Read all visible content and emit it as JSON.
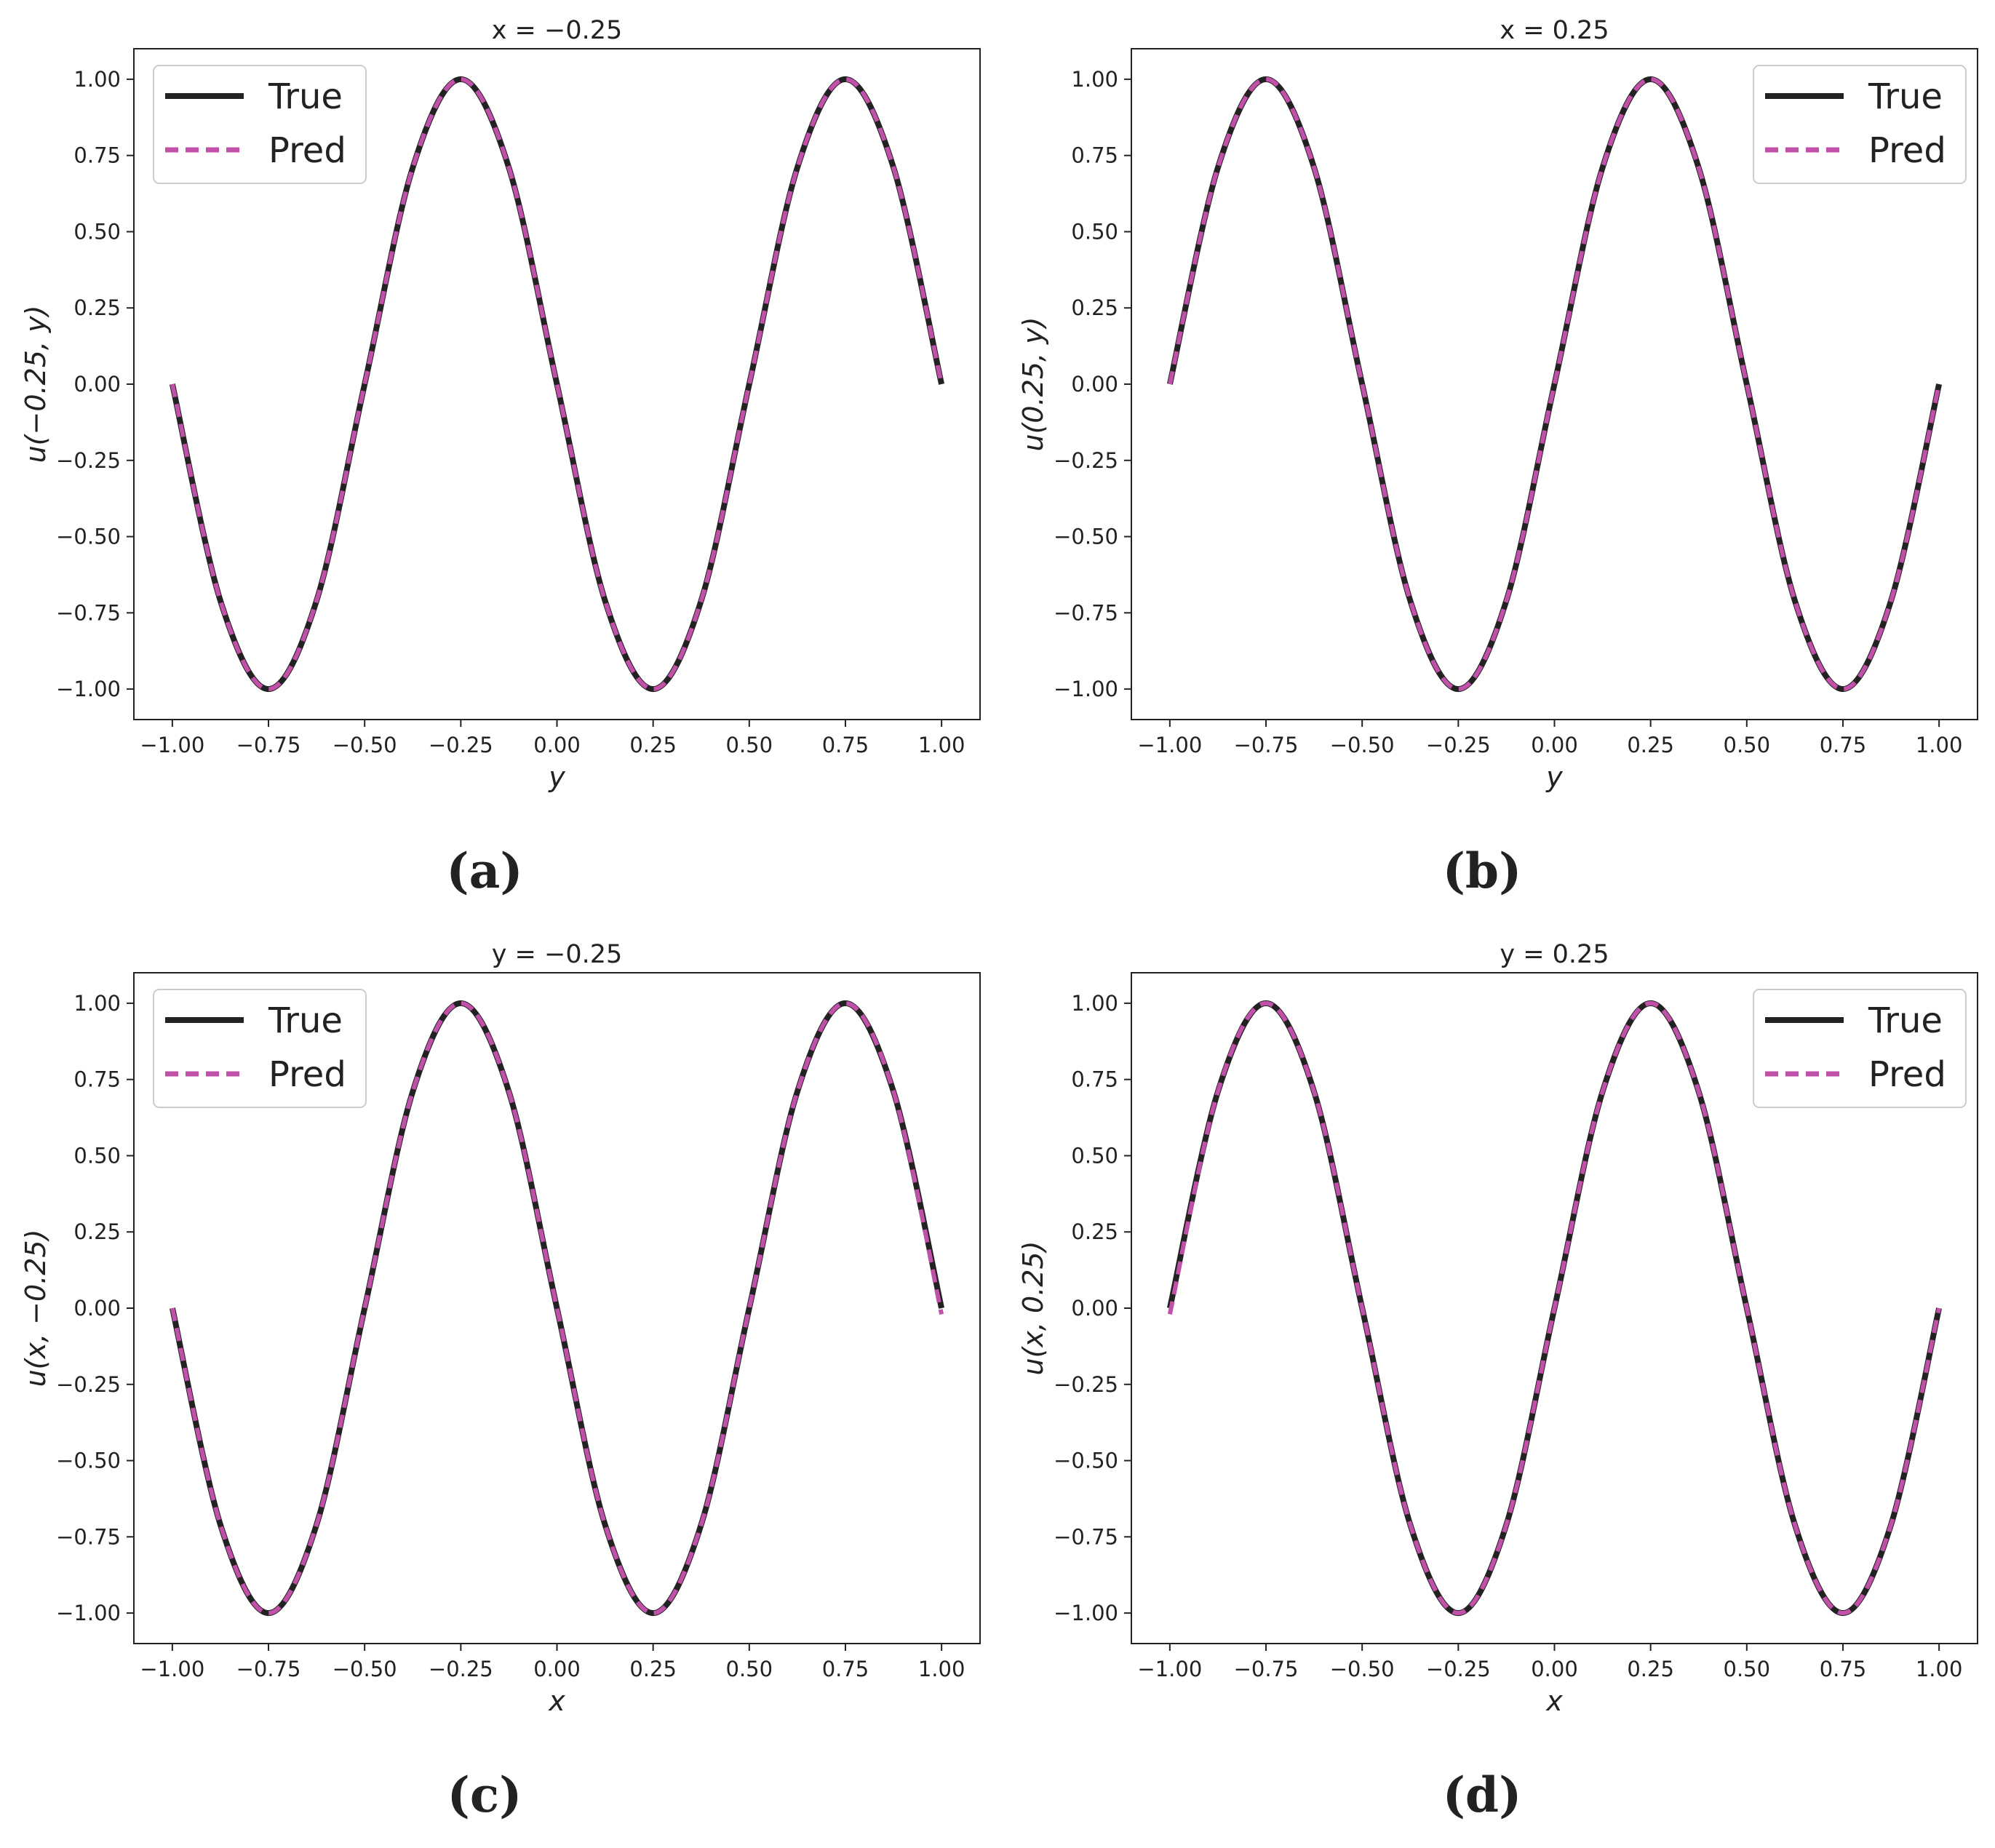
{
  "chart_data": [
    {
      "type": "line",
      "title": "x = −0.25",
      "xlabel": "y",
      "ylabel": "u(−0.25, y)",
      "caption": "(a)",
      "xlim": [
        -1.1,
        1.1
      ],
      "ylim": [
        -1.1,
        1.1
      ],
      "xticks": [
        -1.0,
        -0.75,
        -0.5,
        -0.25,
        0.0,
        0.25,
        0.5,
        0.75,
        1.0
      ],
      "xtick_labels": [
        "−1.00",
        "−0.75",
        "−0.50",
        "−0.25",
        "0.00",
        "0.25",
        "0.50",
        "0.75",
        "1.00"
      ],
      "yticks": [
        1.0,
        0.75,
        0.5,
        0.25,
        0.0,
        -0.25,
        -0.5,
        -0.75,
        -1.0
      ],
      "ytick_labels": [
        "1.00",
        "0.75",
        "0.50",
        "0.25",
        "0.00",
        "−0.25",
        "−0.50",
        "−0.75",
        "−1.00"
      ],
      "grid": false,
      "legend_position": "top-left",
      "x": [
        -1.0,
        -0.875,
        -0.75,
        -0.625,
        -0.5,
        -0.375,
        -0.25,
        -0.125,
        0.0,
        0.125,
        0.25,
        0.375,
        0.5,
        0.625,
        0.75,
        0.875,
        1.0
      ],
      "series": [
        {
          "name": "True",
          "style": "solid",
          "color": "#222222",
          "values": [
            0.0,
            -0.71,
            -1.0,
            -0.71,
            0.0,
            0.71,
            1.0,
            0.71,
            0.0,
            -0.71,
            -1.0,
            -0.71,
            0.0,
            0.71,
            1.0,
            0.71,
            0.0
          ]
        },
        {
          "name": "Pred",
          "style": "dashed",
          "color": "#c050a8",
          "values": [
            0.0,
            -0.71,
            -1.0,
            -0.71,
            0.0,
            0.71,
            1.0,
            0.71,
            0.0,
            -0.71,
            -1.0,
            -0.71,
            0.0,
            0.71,
            1.0,
            0.71,
            0.0
          ]
        }
      ]
    },
    {
      "type": "line",
      "title": "x = 0.25",
      "xlabel": "y",
      "ylabel": "u(0.25, y)",
      "caption": "(b)",
      "xlim": [
        -1.1,
        1.1
      ],
      "ylim": [
        -1.1,
        1.1
      ],
      "xticks": [
        -1.0,
        -0.75,
        -0.5,
        -0.25,
        0.0,
        0.25,
        0.5,
        0.75,
        1.0
      ],
      "xtick_labels": [
        "−1.00",
        "−0.75",
        "−0.50",
        "−0.25",
        "0.00",
        "0.25",
        "0.50",
        "0.75",
        "1.00"
      ],
      "yticks": [
        1.0,
        0.75,
        0.5,
        0.25,
        0.0,
        -0.25,
        -0.5,
        -0.75,
        -1.0
      ],
      "ytick_labels": [
        "1.00",
        "0.75",
        "0.50",
        "0.25",
        "0.00",
        "−0.25",
        "−0.50",
        "−0.75",
        "−1.00"
      ],
      "grid": false,
      "legend_position": "top-right",
      "x": [
        -1.0,
        -0.875,
        -0.75,
        -0.625,
        -0.5,
        -0.375,
        -0.25,
        -0.125,
        0.0,
        0.125,
        0.25,
        0.375,
        0.5,
        0.625,
        0.75,
        0.875,
        1.0
      ],
      "series": [
        {
          "name": "True",
          "style": "solid",
          "color": "#222222",
          "values": [
            0.0,
            0.71,
            1.0,
            0.71,
            0.0,
            -0.71,
            -1.0,
            -0.71,
            0.0,
            0.71,
            1.0,
            0.71,
            0.0,
            -0.71,
            -1.0,
            -0.71,
            0.0
          ]
        },
        {
          "name": "Pred",
          "style": "dashed",
          "color": "#c050a8",
          "values": [
            0.0,
            0.71,
            1.0,
            0.71,
            0.0,
            -0.71,
            -1.0,
            -0.71,
            0.0,
            0.71,
            1.0,
            0.71,
            0.0,
            -0.71,
            -1.0,
            -0.71,
            0.0
          ]
        }
      ]
    },
    {
      "type": "line",
      "title": "y = −0.25",
      "xlabel": "x",
      "ylabel": "u(x, −0.25)",
      "caption": "(c)",
      "xlim": [
        -1.1,
        1.1
      ],
      "ylim": [
        -1.1,
        1.1
      ],
      "xticks": [
        -1.0,
        -0.75,
        -0.5,
        -0.25,
        0.0,
        0.25,
        0.5,
        0.75,
        1.0
      ],
      "xtick_labels": [
        "−1.00",
        "−0.75",
        "−0.50",
        "−0.25",
        "0.00",
        "0.25",
        "0.50",
        "0.75",
        "1.00"
      ],
      "yticks": [
        1.0,
        0.75,
        0.5,
        0.25,
        0.0,
        -0.25,
        -0.5,
        -0.75,
        -1.0
      ],
      "ytick_labels": [
        "1.00",
        "0.75",
        "0.50",
        "0.25",
        "0.00",
        "−0.25",
        "−0.50",
        "−0.75",
        "−1.00"
      ],
      "grid": false,
      "legend_position": "top-left",
      "x": [
        -1.0,
        -0.875,
        -0.75,
        -0.625,
        -0.5,
        -0.375,
        -0.25,
        -0.125,
        0.0,
        0.125,
        0.25,
        0.375,
        0.5,
        0.625,
        0.75,
        0.875,
        1.0
      ],
      "series": [
        {
          "name": "True",
          "style": "solid",
          "color": "#222222",
          "values": [
            0.0,
            -0.71,
            -1.0,
            -0.71,
            0.0,
            0.71,
            1.0,
            0.71,
            0.0,
            -0.71,
            -1.0,
            -0.71,
            0.0,
            0.71,
            1.0,
            0.71,
            0.0
          ]
        },
        {
          "name": "Pred",
          "style": "dashed",
          "color": "#c050a8",
          "values": [
            0.0,
            -0.71,
            -1.0,
            -0.71,
            0.0,
            0.71,
            1.0,
            0.71,
            0.0,
            -0.71,
            -1.0,
            -0.71,
            0.0,
            0.71,
            1.0,
            0.71,
            -0.02
          ]
        }
      ]
    },
    {
      "type": "line",
      "title": "y = 0.25",
      "xlabel": "x",
      "ylabel": "u(x, 0.25)",
      "caption": "(d)",
      "xlim": [
        -1.1,
        1.1
      ],
      "ylim": [
        -1.1,
        1.1
      ],
      "xticks": [
        -1.0,
        -0.75,
        -0.5,
        -0.25,
        0.0,
        0.25,
        0.5,
        0.75,
        1.0
      ],
      "xtick_labels": [
        "−1.00",
        "−0.75",
        "−0.50",
        "−0.25",
        "0.00",
        "0.25",
        "0.50",
        "0.75",
        "1.00"
      ],
      "yticks": [
        1.0,
        0.75,
        0.5,
        0.25,
        0.0,
        -0.25,
        -0.5,
        -0.75,
        -1.0
      ],
      "ytick_labels": [
        "1.00",
        "0.75",
        "0.50",
        "0.25",
        "0.00",
        "−0.25",
        "−0.50",
        "−0.75",
        "−1.00"
      ],
      "grid": false,
      "legend_position": "top-right",
      "x": [
        -1.0,
        -0.875,
        -0.75,
        -0.625,
        -0.5,
        -0.375,
        -0.25,
        -0.125,
        0.0,
        0.125,
        0.25,
        0.375,
        0.5,
        0.625,
        0.75,
        0.875,
        1.0
      ],
      "series": [
        {
          "name": "True",
          "style": "solid",
          "color": "#222222",
          "values": [
            0.0,
            0.71,
            1.0,
            0.71,
            0.0,
            -0.71,
            -1.0,
            -0.71,
            0.0,
            0.71,
            1.0,
            0.71,
            0.0,
            -0.71,
            -1.0,
            -0.71,
            0.0
          ]
        },
        {
          "name": "Pred",
          "style": "dashed",
          "color": "#c050a8",
          "values": [
            -0.02,
            0.71,
            1.0,
            0.71,
            0.0,
            -0.71,
            -1.0,
            -0.71,
            0.0,
            0.71,
            1.0,
            0.71,
            0.0,
            -0.71,
            -1.0,
            -0.71,
            0.0
          ]
        }
      ]
    }
  ]
}
